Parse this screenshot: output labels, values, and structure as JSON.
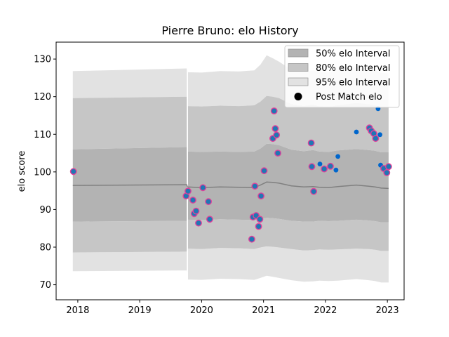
{
  "chart_data": {
    "type": "scatter",
    "title": "Pierre Bruno: elo History",
    "xlabel": "",
    "ylabel": "elo score",
    "xlim": [
      2017.65,
      2023.27
    ],
    "ylim": [
      66.0,
      134.5
    ],
    "x_ticks": [
      2018,
      2019,
      2020,
      2021,
      2022,
      2023
    ],
    "x_tick_labels": [
      "2018",
      "2019",
      "2020",
      "2021",
      "2022",
      "2023"
    ],
    "y_ticks": [
      70,
      80,
      90,
      100,
      110,
      120,
      130
    ],
    "y_tick_labels": [
      "70",
      "80",
      "90",
      "100",
      "110",
      "120",
      "130"
    ],
    "grid": false,
    "legend_position": "top-right",
    "colors": {
      "band50": "#b3b3b3",
      "band80": "#c6c6c6",
      "band95": "#e2e2e2",
      "mean_line": "#808080",
      "point_fill": "#1f77b4",
      "point_fill_alt": "#0066cc",
      "point_edge": "#e0409a"
    },
    "legend": [
      {
        "label": "50% elo Interval",
        "kind": "band50"
      },
      {
        "label": "80% elo Interval",
        "kind": "band80"
      },
      {
        "label": "95% elo Interval",
        "kind": "band95"
      },
      {
        "label": "Post Match elo",
        "kind": "point"
      }
    ],
    "bands": {
      "x": [
        2017.92,
        2019.76,
        2019.77,
        2020.0,
        2020.3,
        2020.6,
        2020.85,
        2020.95,
        2021.05,
        2021.15,
        2021.25,
        2021.45,
        2021.65,
        2021.8,
        2021.9,
        2022.05,
        2022.2,
        2022.5,
        2022.7,
        2022.8,
        2022.9,
        2023.02
      ],
      "mean": [
        96.4,
        96.6,
        96.0,
        95.8,
        96.0,
        95.9,
        95.8,
        96.5,
        97.3,
        97.2,
        97.0,
        96.3,
        96.0,
        96.1,
        95.9,
        95.8,
        96.1,
        96.5,
        96.2,
        96.0,
        95.7,
        95.6
      ],
      "p50": [
        [
          86.8,
          106.0
        ],
        [
          87.0,
          106.6
        ],
        [
          87.3,
          105.4
        ],
        [
          87.2,
          105.3
        ],
        [
          87.4,
          105.4
        ],
        [
          87.3,
          105.3
        ],
        [
          87.2,
          105.4
        ],
        [
          87.5,
          106.2
        ],
        [
          87.8,
          107.5
        ],
        [
          87.7,
          107.4
        ],
        [
          87.5,
          107.1
        ],
        [
          87.0,
          105.9
        ],
        [
          86.8,
          105.5
        ],
        [
          86.8,
          105.8
        ],
        [
          87.0,
          105.4
        ],
        [
          86.9,
          105.3
        ],
        [
          87.0,
          105.7
        ],
        [
          87.3,
          106.1
        ],
        [
          87.1,
          105.8
        ],
        [
          86.9,
          105.6
        ],
        [
          86.6,
          105.2
        ],
        [
          86.6,
          105.2
        ]
      ],
      "p80": [
        [
          78.6,
          119.6
        ],
        [
          78.8,
          120.0
        ],
        [
          79.6,
          117.5
        ],
        [
          79.5,
          117.4
        ],
        [
          79.8,
          117.6
        ],
        [
          79.7,
          117.5
        ],
        [
          79.5,
          117.7
        ],
        [
          79.9,
          118.7
        ],
        [
          80.2,
          120.2
        ],
        [
          80.1,
          120.0
        ],
        [
          79.9,
          119.6
        ],
        [
          79.5,
          118.0
        ],
        [
          79.1,
          117.5
        ],
        [
          79.2,
          117.9
        ],
        [
          79.4,
          117.4
        ],
        [
          79.3,
          117.3
        ],
        [
          79.4,
          117.7
        ],
        [
          79.6,
          118.3
        ],
        [
          79.5,
          118.0
        ],
        [
          79.3,
          117.7
        ],
        [
          79.0,
          117.2
        ],
        [
          79.0,
          117.2
        ]
      ],
      "p95": [
        [
          73.6,
          126.8
        ],
        [
          73.8,
          127.5
        ],
        [
          71.4,
          126.5
        ],
        [
          71.3,
          126.4
        ],
        [
          71.6,
          126.8
        ],
        [
          71.5,
          126.7
        ],
        [
          71.3,
          127.0
        ],
        [
          71.8,
          128.5
        ],
        [
          72.4,
          131.0
        ],
        [
          72.1,
          130.2
        ],
        [
          71.8,
          129.3
        ],
        [
          71.2,
          127.2
        ],
        [
          70.8,
          126.6
        ],
        [
          70.9,
          127.0
        ],
        [
          71.1,
          126.7
        ],
        [
          71.0,
          126.5
        ],
        [
          71.1,
          127.2
        ],
        [
          71.5,
          127.9
        ],
        [
          71.2,
          127.4
        ],
        [
          71.0,
          127.0
        ],
        [
          70.6,
          126.3
        ],
        [
          70.6,
          126.2
        ]
      ]
    },
    "points": [
      {
        "x": 2017.93,
        "y": 100.1,
        "edge": true
      },
      {
        "x": 2019.75,
        "y": 93.6,
        "edge": true
      },
      {
        "x": 2019.78,
        "y": 94.9,
        "edge": true
      },
      {
        "x": 2019.86,
        "y": 92.5,
        "edge": true
      },
      {
        "x": 2019.88,
        "y": 88.9,
        "edge": true
      },
      {
        "x": 2019.91,
        "y": 89.6,
        "edge": true
      },
      {
        "x": 2019.95,
        "y": 86.4,
        "edge": true
      },
      {
        "x": 2020.02,
        "y": 95.8,
        "edge": true
      },
      {
        "x": 2020.11,
        "y": 92.1,
        "edge": true
      },
      {
        "x": 2020.13,
        "y": 87.4,
        "edge": true
      },
      {
        "x": 2020.81,
        "y": 82.1,
        "edge": true
      },
      {
        "x": 2020.83,
        "y": 88.0,
        "edge": true
      },
      {
        "x": 2020.86,
        "y": 96.2,
        "edge": true
      },
      {
        "x": 2020.88,
        "y": 88.4,
        "edge": true
      },
      {
        "x": 2020.92,
        "y": 85.5,
        "edge": true
      },
      {
        "x": 2020.94,
        "y": 87.4,
        "edge": true
      },
      {
        "x": 2020.96,
        "y": 93.6,
        "edge": true
      },
      {
        "x": 2021.01,
        "y": 100.3,
        "edge": true
      },
      {
        "x": 2021.15,
        "y": 108.9,
        "edge": true
      },
      {
        "x": 2021.17,
        "y": 116.2,
        "edge": true
      },
      {
        "x": 2021.19,
        "y": 111.5,
        "edge": true
      },
      {
        "x": 2021.21,
        "y": 109.8,
        "edge": true
      },
      {
        "x": 2021.23,
        "y": 105.0,
        "edge": true
      },
      {
        "x": 2021.77,
        "y": 107.7,
        "edge": true
      },
      {
        "x": 2021.78,
        "y": 101.4,
        "edge": true
      },
      {
        "x": 2021.81,
        "y": 94.8,
        "edge": true
      },
      {
        "x": 2021.91,
        "y": 102.1,
        "edge": false
      },
      {
        "x": 2021.98,
        "y": 100.8,
        "edge": true
      },
      {
        "x": 2022.08,
        "y": 101.5,
        "edge": true
      },
      {
        "x": 2022.17,
        "y": 100.5,
        "edge": false
      },
      {
        "x": 2022.2,
        "y": 104.1,
        "edge": false
      },
      {
        "x": 2022.5,
        "y": 110.6,
        "edge": false
      },
      {
        "x": 2022.71,
        "y": 111.7,
        "edge": true
      },
      {
        "x": 2022.74,
        "y": 110.9,
        "edge": true
      },
      {
        "x": 2022.78,
        "y": 110.2,
        "edge": true
      },
      {
        "x": 2022.81,
        "y": 108.9,
        "edge": true
      },
      {
        "x": 2022.85,
        "y": 116.8,
        "edge": false
      },
      {
        "x": 2022.88,
        "y": 109.9,
        "edge": false
      },
      {
        "x": 2022.89,
        "y": 101.8,
        "edge": false
      },
      {
        "x": 2022.94,
        "y": 100.9,
        "edge": true
      },
      {
        "x": 2022.99,
        "y": 99.8,
        "edge": true
      },
      {
        "x": 2023.02,
        "y": 101.4,
        "edge": true
      }
    ]
  }
}
